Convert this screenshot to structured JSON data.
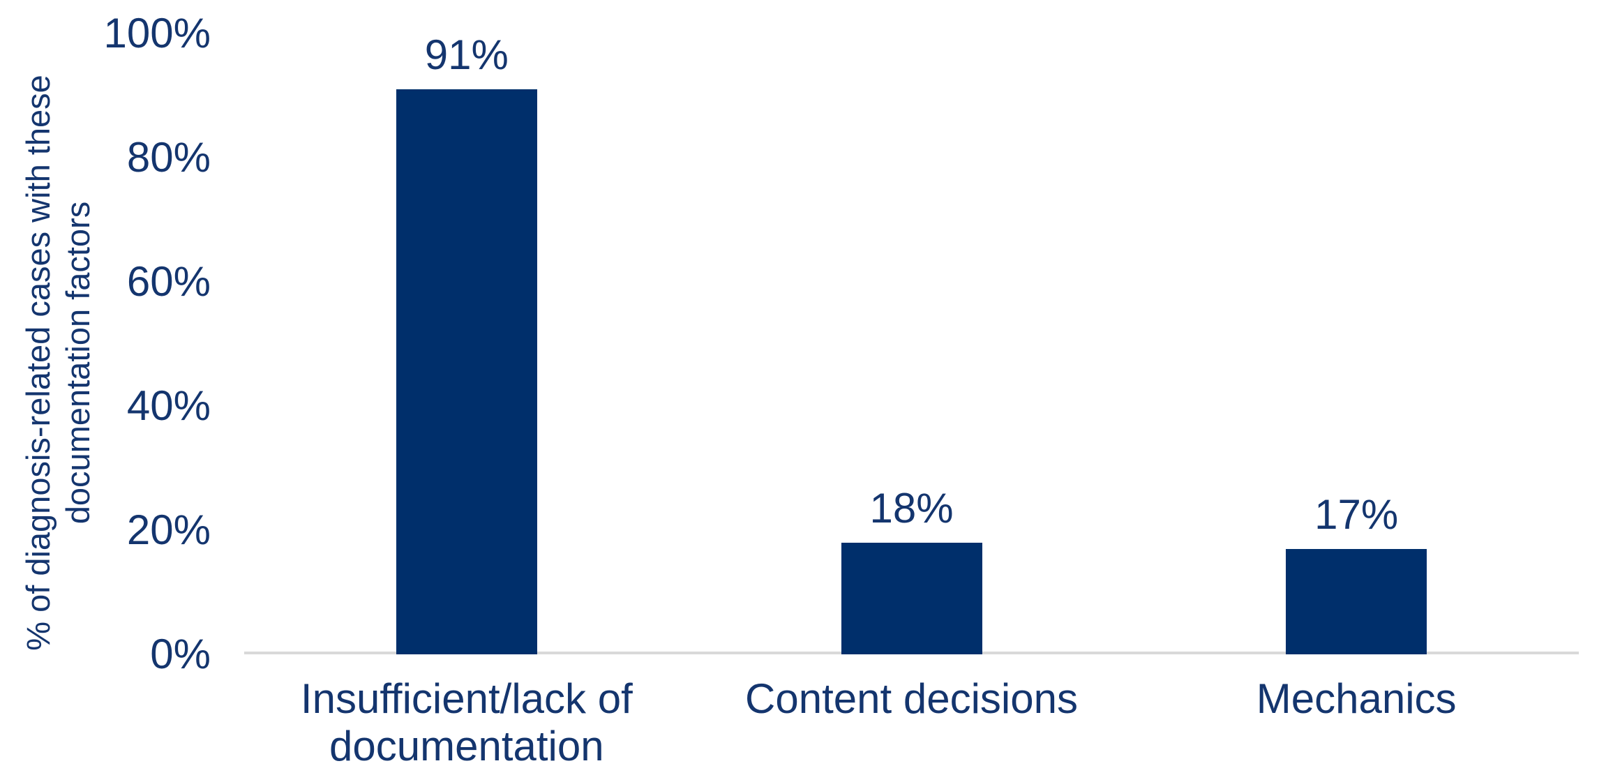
{
  "chart_data": {
    "type": "bar",
    "title": "",
    "categories": [
      "Insufficient/lack of documentation",
      "Content decisions",
      "Mechanics"
    ],
    "values": [
      91,
      18,
      17
    ],
    "bar_labels": [
      "91%",
      "18%",
      "17%"
    ],
    "series": [
      {
        "name": "% of diagnosis-related cases",
        "values": [
          91,
          18,
          17
        ]
      }
    ],
    "xlabel": "",
    "ylabel": "% of diagnosis-related cases with these documentation factors",
    "ylabel_lines": [
      "% of diagnosis-related cases with these",
      "documentation factors"
    ],
    "yticks": [
      {
        "label": "0%",
        "value": 0
      },
      {
        "label": "20%",
        "value": 20
      },
      {
        "label": "40%",
        "value": 40
      },
      {
        "label": "60%",
        "value": 60
      },
      {
        "label": "80%",
        "value": 80
      },
      {
        "label": "100%",
        "value": 100
      }
    ],
    "ylim": [
      0,
      100
    ],
    "grid": false,
    "legend": null,
    "colors": {
      "bar": "#002F6B",
      "text": "#14356E",
      "axis_line": "#D9D9D9",
      "background": "#FFFFFF"
    }
  }
}
